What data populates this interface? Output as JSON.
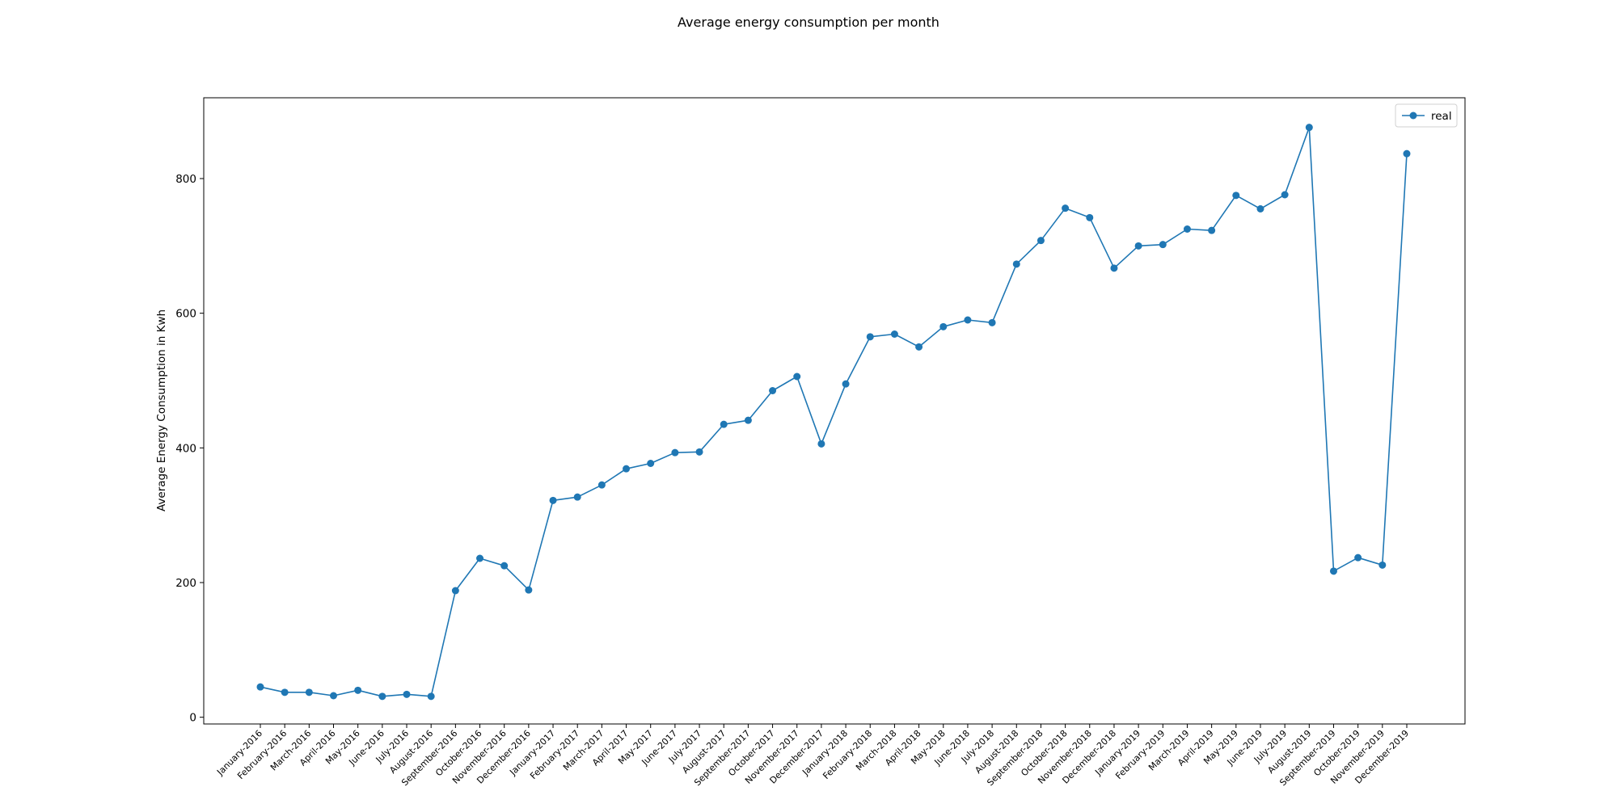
{
  "chart_data": {
    "type": "line",
    "title": "Average energy consumption per month",
    "xlabel": "",
    "ylabel": "Average Energy Consumption in Kwh",
    "ylim": [
      -10,
      920
    ],
    "yticks": [
      0,
      200,
      400,
      600,
      800
    ],
    "grid": false,
    "legend_position": "top-right",
    "categories": [
      "January-2016",
      "February-2016",
      "March-2016",
      "April-2016",
      "May-2016",
      "June-2016",
      "July-2016",
      "August-2016",
      "September-2016",
      "October-2016",
      "November-2016",
      "December-2016",
      "January-2017",
      "February-2017",
      "March-2017",
      "April-2017",
      "May-2017",
      "June-2017",
      "July-2017",
      "August-2017",
      "September-2017",
      "October-2017",
      "November-2017",
      "December-2017",
      "January-2018",
      "February-2018",
      "March-2018",
      "April-2018",
      "May-2018",
      "June-2018",
      "July-2018",
      "August-2018",
      "September-2018",
      "October-2018",
      "November-2018",
      "December-2018",
      "January-2019",
      "February-2019",
      "March-2019",
      "April-2019",
      "May-2019",
      "June-2019",
      "July-2019",
      "August-2019",
      "September-2019",
      "October-2019",
      "November-2019",
      "December-2019"
    ],
    "series": [
      {
        "name": "real",
        "color": "#1f77b4",
        "values": [
          45,
          37,
          37,
          32,
          40,
          31,
          34,
          31,
          188,
          236,
          225,
          189,
          322,
          327,
          345,
          369,
          377,
          393,
          394,
          435,
          441,
          485,
          506,
          406,
          495,
          565,
          569,
          550,
          580,
          590,
          586,
          673,
          708,
          756,
          742,
          667,
          700,
          702,
          725,
          723,
          775,
          755,
          776,
          876,
          217,
          237,
          226,
          837
        ]
      }
    ]
  }
}
